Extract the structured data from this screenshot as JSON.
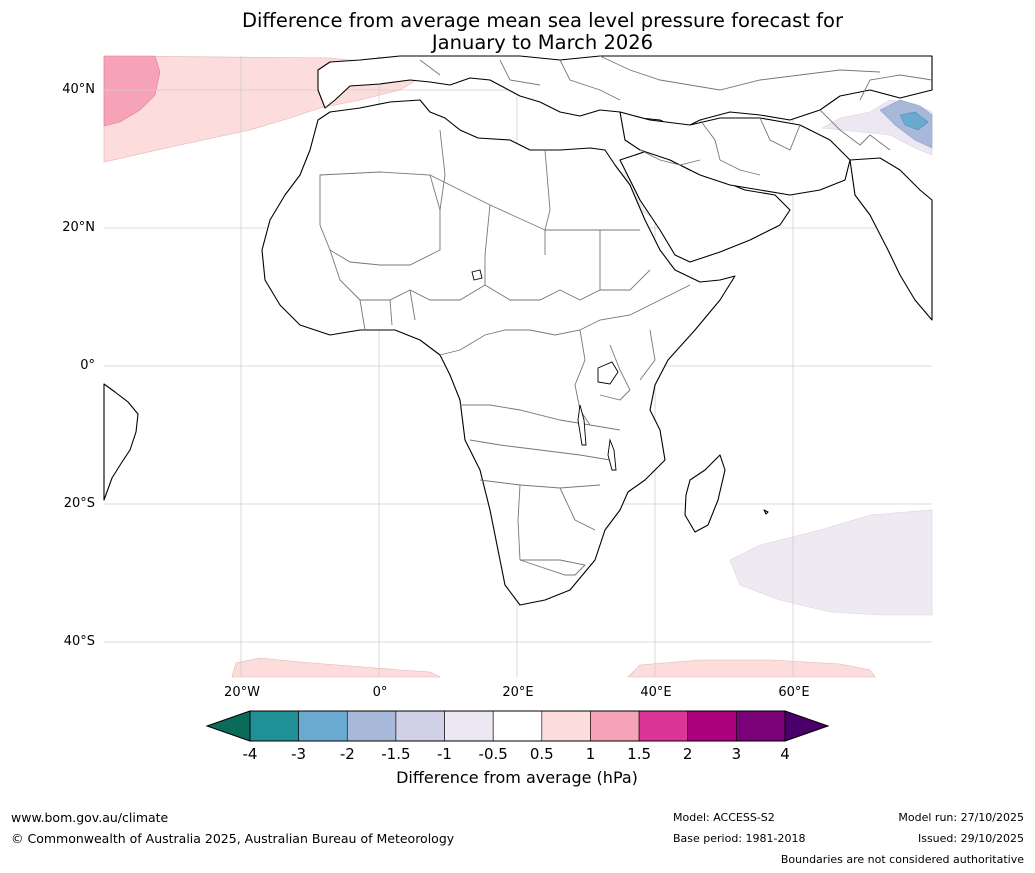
{
  "title": {
    "line1": "Difference from average mean sea level pressure forecast for",
    "line2": "January to March 2026"
  },
  "map": {
    "lat_labels": [
      "40°N",
      "20°N",
      "0°",
      "20°S",
      "40°S"
    ],
    "lon_labels": [
      "20°W",
      "0°",
      "20°E",
      "40°E",
      "60°E"
    ]
  },
  "colorbar": {
    "label": "Difference from average (hPa)",
    "ticks": [
      "-4",
      "-3",
      "-2",
      "-1.5",
      "-1",
      "-0.5",
      "0.5",
      "1",
      "1.5",
      "2",
      "3",
      "4"
    ],
    "colors": [
      "#0b6b5a",
      "#1f9096",
      "#6aaad1",
      "#a8b8d9",
      "#d0d1e6",
      "#ece7f2",
      "#ffffff",
      "#fddcdc",
      "#f7a3b7",
      "#dd3497",
      "#ae017e",
      "#7a0177",
      "#49006a"
    ]
  },
  "footer": {
    "url": "www.bom.gov.au/climate",
    "copyright": "© Commonwealth of Australia 2025, Australian Bureau of Meteorology",
    "model": "Model: ACCESS-S2",
    "base_period": "Base period: 1981-2018",
    "model_run": "Model run: 27/10/2025",
    "issued": "Issued: 29/10/2025",
    "disclaimer": "Boundaries are not considered authoritative"
  }
}
